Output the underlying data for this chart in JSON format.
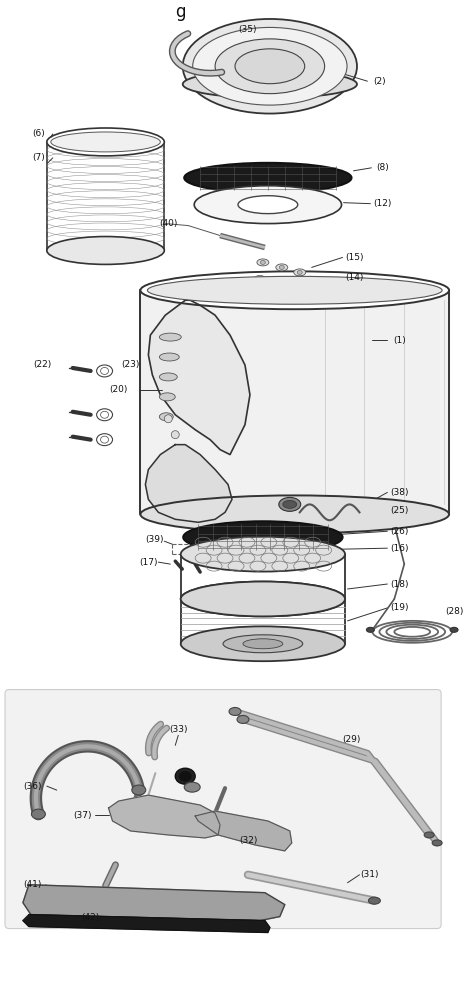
{
  "title": "g",
  "bg_color": "#ffffff",
  "fig_width": 4.74,
  "fig_height": 9.83,
  "dpi": 100,
  "line_color": "#333333",
  "label_color": "#111111",
  "label_fs": 6.5
}
